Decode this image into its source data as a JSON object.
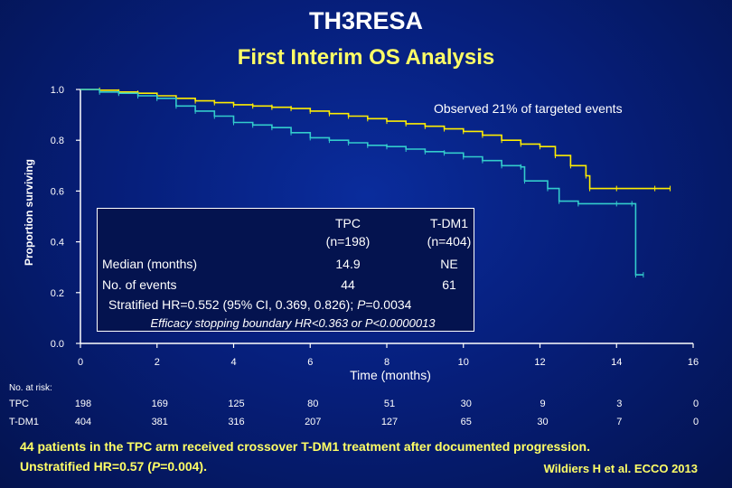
{
  "header": {
    "title": "TH3RESA",
    "subtitle": "First Interim OS Analysis"
  },
  "annotation": "Observed 21% of targeted events",
  "colors": {
    "tdm1": "#ffee00",
    "tpc": "#33cccc",
    "highlight": "#ffff66"
  },
  "chart_data": {
    "type": "line",
    "ylabel": "Proportion surviving",
    "xlabel": "Time (months)",
    "xlim": [
      0,
      16
    ],
    "ylim": [
      0,
      1.0
    ],
    "x_ticks": [
      "0",
      "2",
      "4",
      "6",
      "8",
      "10",
      "12",
      "14",
      "16"
    ],
    "y_ticks": [
      "0.0",
      "0.2",
      "0.4",
      "0.6",
      "0.8",
      "1.0"
    ],
    "series": [
      {
        "name": "T-DM1",
        "color": "#ffee00",
        "x": [
          0,
          0.5,
          1.0,
          1.5,
          2.0,
          2.5,
          3.0,
          3.5,
          4.0,
          4.5,
          5.0,
          5.5,
          6.0,
          6.5,
          7.0,
          7.5,
          8.0,
          8.5,
          9.0,
          9.5,
          10.0,
          10.5,
          11.0,
          11.5,
          12.0,
          12.4,
          12.8,
          13.2,
          13.3,
          14.0,
          15.0,
          15.4
        ],
        "y": [
          1.0,
          0.997,
          0.99,
          0.985,
          0.975,
          0.965,
          0.955,
          0.948,
          0.94,
          0.935,
          0.93,
          0.925,
          0.915,
          0.905,
          0.895,
          0.885,
          0.875,
          0.865,
          0.855,
          0.845,
          0.835,
          0.82,
          0.8,
          0.785,
          0.775,
          0.74,
          0.7,
          0.66,
          0.61,
          0.61,
          0.61,
          0.61
        ]
      },
      {
        "name": "TPC",
        "color": "#33cccc",
        "x": [
          0,
          0.5,
          1.0,
          1.5,
          2.0,
          2.5,
          3.0,
          3.5,
          4.0,
          4.5,
          5.0,
          5.5,
          6.0,
          6.5,
          7.0,
          7.5,
          8.0,
          8.5,
          9.0,
          9.5,
          10.0,
          10.5,
          11.0,
          11.5,
          11.6,
          12.2,
          12.5,
          13.0,
          14.0,
          14.4,
          14.5,
          14.7
        ],
        "y": [
          1.0,
          0.99,
          0.985,
          0.975,
          0.965,
          0.935,
          0.915,
          0.895,
          0.87,
          0.86,
          0.85,
          0.83,
          0.81,
          0.8,
          0.79,
          0.78,
          0.775,
          0.765,
          0.755,
          0.75,
          0.735,
          0.72,
          0.7,
          0.695,
          0.64,
          0.61,
          0.56,
          0.55,
          0.55,
          0.55,
          0.27,
          0.27
        ]
      }
    ],
    "table": {
      "col_headers": [
        [
          "TPC",
          "(n=198)"
        ],
        [
          "T-DM1",
          "(n=404)"
        ]
      ],
      "rows": [
        {
          "label": "Median (months)",
          "tpc": "14.9",
          "tdm1": "NE"
        },
        {
          "label": "No. of events",
          "tpc": "44",
          "tdm1": "61"
        }
      ],
      "hr_prefix": "Stratified HR=0.552 (95% CI, 0.369, 0.826); ",
      "hr_p_label": "P",
      "hr_p_value": "=0.0034",
      "stopping": "Efficacy stopping boundary HR<0.363 or P<0.0000013"
    },
    "risk_table": {
      "header": "No. at risk:",
      "rows": [
        {
          "label": "TPC",
          "values": [
            "198",
            "169",
            "125",
            "80",
            "51",
            "30",
            "9",
            "3",
            "0"
          ]
        },
        {
          "label": "T-DM1",
          "values": [
            "404",
            "381",
            "316",
            "207",
            "127",
            "65",
            "30",
            "7",
            "0"
          ]
        }
      ]
    }
  },
  "footer": {
    "line1": "44 patients in the TPC arm received crossover T-DM1 treatment after documented progression.",
    "line2_prefix": "Unstratified HR=0.57 (",
    "line2_p": "P",
    "line2_suffix": "=0.004).",
    "citation": "Wildiers H et al. ECCO 2013"
  }
}
